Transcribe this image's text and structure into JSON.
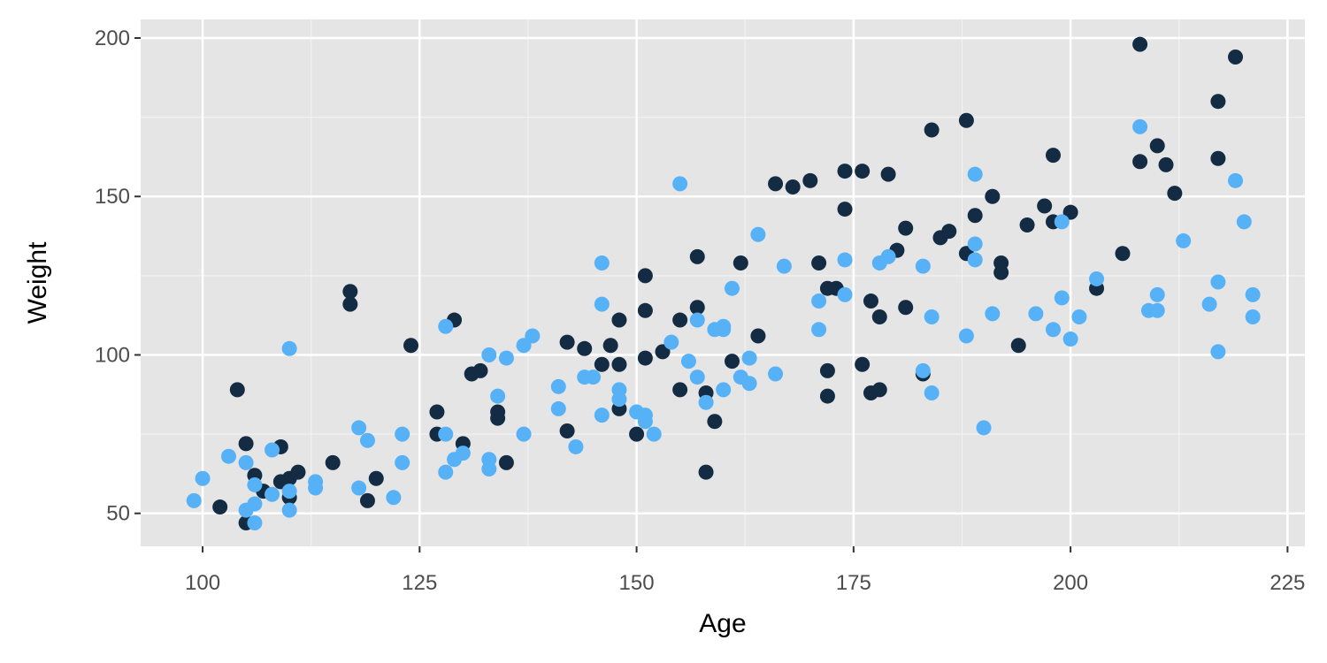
{
  "chart_data": {
    "type": "scatter",
    "xlabel": "Age",
    "ylabel": "Weight",
    "xlim": [
      92.86,
      227.0
    ],
    "ylim": [
      39.6,
      205.86
    ],
    "xticks": [
      100,
      125,
      150,
      175,
      200,
      225
    ],
    "yticks": [
      50,
      100,
      150,
      200
    ],
    "xminorticks": [
      112.5,
      137.5,
      162.5,
      187.5,
      212.5
    ],
    "yminorticks": [
      75,
      125,
      175
    ],
    "grid": true,
    "series": [
      {
        "color": "#132b43",
        "x": [
          208,
          219,
          217,
          217,
          208,
          210,
          211,
          212,
          198,
          188,
          184,
          191,
          189,
          200,
          197,
          195,
          198,
          206,
          203,
          192,
          192,
          188,
          186,
          185,
          181,
          180,
          179,
          176,
          174,
          174,
          170,
          168,
          166,
          171,
          172,
          173,
          177,
          178,
          181,
          194,
          172,
          172,
          176,
          177,
          178,
          183,
          162,
          157,
          157,
          155,
          164,
          161,
          155,
          158,
          159,
          158,
          151,
          151,
          153,
          151,
          148,
          150,
          148,
          146,
          147,
          148,
          144,
          142,
          142,
          135,
          134,
          134,
          130,
          131,
          132,
          129,
          127,
          127,
          124,
          117,
          117,
          115,
          120,
          119,
          111,
          110,
          109,
          110,
          109,
          107,
          106,
          105,
          105,
          104,
          102
        ],
        "values": [
          198,
          194,
          180,
          162,
          161,
          166,
          160,
          151,
          163,
          174,
          171,
          150,
          144,
          145,
          147,
          141,
          142,
          132,
          121,
          129,
          126,
          132,
          139,
          137,
          140,
          133,
          157,
          158,
          158,
          146,
          155,
          153,
          154,
          129,
          121,
          121,
          117,
          112,
          115,
          103,
          95,
          87,
          97,
          88,
          89,
          94,
          129,
          131,
          115,
          111,
          106,
          98,
          89,
          88,
          79,
          63,
          125,
          114,
          101,
          99,
          97,
          75,
          83,
          97,
          103,
          111,
          102,
          104,
          76,
          66,
          80,
          82,
          72,
          94,
          95,
          111,
          82,
          75,
          103,
          120,
          116,
          66,
          61,
          54,
          63,
          61,
          60,
          55,
          71,
          57,
          62,
          72,
          47,
          89,
          52
        ]
      },
      {
        "color": "#56b1f7",
        "x": [
          208,
          189,
          219,
          220,
          213,
          217,
          221,
          221,
          216,
          217,
          209,
          210,
          210,
          199,
          203,
          199,
          201,
          196,
          198,
          200,
          190,
          191,
          188,
          189,
          189,
          183,
          184,
          184,
          183,
          179,
          178,
          174,
          174,
          171,
          171,
          155,
          164,
          167,
          161,
          163,
          163,
          162,
          166,
          160,
          160,
          159,
          157,
          156,
          157,
          158,
          160,
          154,
          146,
          146,
          145,
          144,
          141,
          141,
          143,
          146,
          148,
          148,
          150,
          151,
          151,
          152,
          138,
          137,
          137,
          135,
          133,
          134,
          133,
          133,
          130,
          129,
          128,
          128,
          128,
          123,
          123,
          122,
          119,
          118,
          118,
          113,
          113,
          110,
          110,
          110,
          108,
          108,
          106,
          106,
          106,
          105,
          105,
          103,
          100,
          99
        ],
        "values": [
          172,
          157,
          155,
          142,
          136,
          123,
          119,
          112,
          116,
          101,
          114,
          114,
          119,
          142,
          124,
          118,
          112,
          113,
          108,
          105,
          77,
          113,
          106,
          135,
          130,
          128,
          112,
          88,
          95,
          131,
          129,
          130,
          119,
          117,
          108,
          154,
          138,
          128,
          121,
          99,
          91,
          93,
          94,
          109,
          108,
          108,
          111,
          98,
          93,
          85,
          89,
          104,
          129,
          116,
          93,
          93,
          90,
          83,
          71,
          81,
          89,
          86,
          82,
          81,
          79,
          75,
          106,
          103,
          75,
          99,
          100,
          87,
          67,
          64,
          69,
          67,
          109,
          75,
          63,
          75,
          66,
          55,
          73,
          77,
          58,
          60,
          58,
          102,
          51,
          57,
          70,
          56,
          59,
          53,
          47,
          66,
          51,
          68,
          61,
          54
        ]
      }
    ]
  }
}
